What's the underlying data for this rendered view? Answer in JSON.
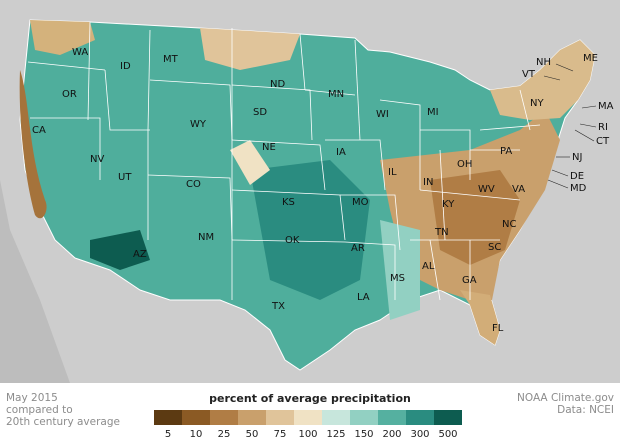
{
  "footer": {
    "date_lines": [
      "May 2015",
      "compared to",
      "20th century average"
    ],
    "credit_lines": [
      "NOAA Climate.gov",
      "Data: NCEI"
    ]
  },
  "legend": {
    "title": "percent of average precipitation",
    "ticks": [
      "5",
      "10",
      "25",
      "50",
      "75",
      "100",
      "125",
      "150",
      "200",
      "300",
      "500"
    ],
    "colors": [
      "#5c3a12",
      "#8b5a24",
      "#b07d45",
      "#c9a06c",
      "#e0c49a",
      "#f0e2c4",
      "#c7e6dc",
      "#92d0c2",
      "#55b0a0",
      "#2a8c80",
      "#0d5c50"
    ]
  },
  "colors": {
    "land_background": "#cfcfcf",
    "water": "#d4d4d4",
    "state_border": "#ffffff"
  },
  "states": [
    {
      "abbr": "WA"
    },
    {
      "abbr": "OR"
    },
    {
      "abbr": "CA"
    },
    {
      "abbr": "ID"
    },
    {
      "abbr": "NV"
    },
    {
      "abbr": "MT"
    },
    {
      "abbr": "WY"
    },
    {
      "abbr": "UT"
    },
    {
      "abbr": "AZ"
    },
    {
      "abbr": "CO"
    },
    {
      "abbr": "NM"
    },
    {
      "abbr": "ND"
    },
    {
      "abbr": "SD"
    },
    {
      "abbr": "NE"
    },
    {
      "abbr": "KS"
    },
    {
      "abbr": "OK"
    },
    {
      "abbr": "TX"
    },
    {
      "abbr": "MN"
    },
    {
      "abbr": "IA"
    },
    {
      "abbr": "MO"
    },
    {
      "abbr": "AR"
    },
    {
      "abbr": "LA"
    },
    {
      "abbr": "WI"
    },
    {
      "abbr": "IL"
    },
    {
      "abbr": "MI"
    },
    {
      "abbr": "IN"
    },
    {
      "abbr": "OH"
    },
    {
      "abbr": "KY"
    },
    {
      "abbr": "TN"
    },
    {
      "abbr": "MS"
    },
    {
      "abbr": "AL"
    },
    {
      "abbr": "GA"
    },
    {
      "abbr": "FL"
    },
    {
      "abbr": "SC"
    },
    {
      "abbr": "NC"
    },
    {
      "abbr": "VA"
    },
    {
      "abbr": "WV"
    },
    {
      "abbr": "PA"
    },
    {
      "abbr": "NY"
    },
    {
      "abbr": "VT"
    },
    {
      "abbr": "NH"
    },
    {
      "abbr": "ME"
    },
    {
      "abbr": "MA"
    },
    {
      "abbr": "RI"
    },
    {
      "abbr": "CT"
    },
    {
      "abbr": "NJ"
    },
    {
      "abbr": "DE"
    },
    {
      "abbr": "MD"
    }
  ]
}
